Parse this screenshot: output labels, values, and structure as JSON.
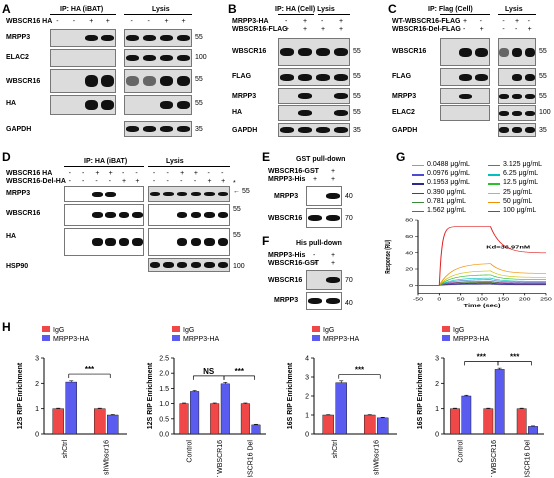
{
  "panels": {
    "A": {
      "label": "A",
      "ip_header": "IP: HA (iBAT)",
      "lysis_header": "Lysis",
      "condition_label": "WBSCR16 HA",
      "condition_signs": [
        "-",
        "-",
        "+",
        "+",
        "-",
        "-",
        "+",
        "+"
      ],
      "blots": [
        "MRPP3",
        "ELAC2",
        "WBSCR16",
        "HA",
        "GAPDH"
      ],
      "markers": [
        "55",
        "100",
        "55",
        "55",
        "35"
      ]
    },
    "B": {
      "label": "B",
      "ip_header": "IP: HA (Cell) Lysis",
      "conditions": [
        {
          "label": "MRPP3-HA",
          "signs": [
            "-",
            "+",
            "-",
            "+"
          ]
        },
        {
          "label": "WBSCR16-FLAG",
          "signs": [
            "+",
            "+",
            "+",
            "+"
          ]
        }
      ],
      "blots": [
        "WBSCR16",
        "FLAG",
        "MRPP3",
        "HA",
        "GAPDH"
      ],
      "markers": [
        "55",
        "55",
        "55",
        "55",
        "35"
      ]
    },
    "C": {
      "label": "C",
      "ip_header": "IP: Flag (Cell)",
      "lysis_header": "Lysis",
      "conditions": [
        {
          "label": "WT-WBSCR16-FLAG",
          "signs": [
            "-",
            "+",
            "-",
            "-",
            "+",
            "-"
          ]
        },
        {
          "label": "WBSCR16-Del-FLAG",
          "signs": [
            "-",
            "-",
            "+",
            "-",
            "-",
            "+"
          ]
        }
      ],
      "blots": [
        "WBSCR16",
        "FLAG",
        "MRPP3",
        "ELAC2",
        "GAPDH"
      ],
      "markers": [
        "55",
        "55",
        "55",
        "100",
        "35"
      ]
    },
    "D": {
      "label": "D",
      "ip_header": "IP: HA (iBAT)",
      "lysis_header": "Lysis",
      "conditions": [
        {
          "label": "WBSCR16 HA",
          "signs": [
            "-",
            "-",
            "+",
            "+",
            "-",
            "-",
            "-",
            "-",
            "+",
            "+",
            "-",
            "-"
          ]
        },
        {
          "label": "WBSCR16-Del-HA",
          "signs": [
            "-",
            "-",
            "-",
            "-",
            "+",
            "+",
            "-",
            "-",
            "-",
            "-",
            "+",
            "+"
          ]
        }
      ],
      "blots": [
        "MRPP3",
        "WBSCR16",
        "HA",
        "HSP90"
      ],
      "markers": [
        "55",
        "55",
        "55",
        "100"
      ],
      "arrows": [
        "*",
        "←"
      ]
    },
    "E": {
      "label": "E",
      "header": "GST pull-down",
      "conditions": [
        {
          "label": "WBSCR16-GST",
          "signs": [
            "-",
            "+"
          ]
        },
        {
          "label": "MRPP3-His",
          "signs": [
            "+",
            "+"
          ]
        }
      ],
      "blots": [
        "MRPP3",
        "WBSCR16"
      ],
      "markers": [
        "40",
        "70"
      ]
    },
    "F": {
      "label": "F",
      "header": "His pull-down",
      "conditions": [
        {
          "label": "MRPP3-His",
          "signs": [
            "-",
            "+"
          ]
        },
        {
          "label": "WBSCR16-GST",
          "signs": [
            "+",
            "+"
          ]
        }
      ],
      "blots": [
        "WBSCR16",
        "MRPP3"
      ],
      "markers": [
        "70",
        "40"
      ]
    }
  },
  "legend_colors": {
    "igg": "#f04848",
    "mrpp3": "#5a5cf0"
  },
  "chart_data": [
    {
      "panel": "G",
      "type": "line",
      "xlabel": "Time (sec)",
      "ylabel": "Response (RU)",
      "xlim": [
        -50,
        250
      ],
      "ylim": [
        -10,
        80
      ],
      "xticks": [
        "-50",
        "0",
        "50",
        "100",
        "150",
        "200",
        "250"
      ],
      "yticks": [
        "0",
        "20",
        "40",
        "60",
        "80"
      ],
      "annotation": "Kd=36.97nM",
      "association_end_sec": 120,
      "series": [
        {
          "name": "0.0488 μg/mL",
          "plateau": 1,
          "color": "#9a9aa0"
        },
        {
          "name": "0.0976 μg/mL",
          "plateau": 1.5,
          "color": "#4b4bd0"
        },
        {
          "name": "0.1953 μg/mL",
          "plateau": 2,
          "color": "#2a2a8a"
        },
        {
          "name": "0.390 μg/mL",
          "plateau": 3,
          "color": "#8a2a2a"
        },
        {
          "name": "0.781 μg/mL",
          "plateau": 4,
          "color": "#3a8a3a"
        },
        {
          "name": "1.562 μg/mL",
          "plateau": 5,
          "color": "#a03aa0"
        },
        {
          "name": "3.125 μg/mL",
          "plateau": 7,
          "color": "#3a7ac8"
        },
        {
          "name": "6.25 μg/mL",
          "plateau": 9,
          "color": "#00c0c0"
        },
        {
          "name": "12.5 μg/mL",
          "plateau": 13,
          "color": "#2ac02a"
        },
        {
          "name": "25 μg/mL",
          "plateau": 18,
          "color": "#d0c000"
        },
        {
          "name": "50 μg/mL",
          "plateau": 27,
          "color": "#f09000"
        },
        {
          "name": "100 μg/mL",
          "plateau": 72,
          "color": "#e02020"
        }
      ]
    },
    {
      "panel": "H1",
      "type": "bar",
      "ylabel": "12S RIP Enrichment",
      "ylim": [
        0,
        3
      ],
      "yticks": [
        "0",
        "1",
        "2",
        "3"
      ],
      "categories": [
        "shCtrl",
        "shWbscr16"
      ],
      "series": [
        {
          "name": "IgG",
          "values": [
            1.0,
            1.0
          ],
          "errors": [
            0.02,
            0.02
          ]
        },
        {
          "name": "MRPP3-HA",
          "values": [
            2.05,
            0.75
          ],
          "errors": [
            0.05,
            0.02
          ]
        }
      ],
      "annotations": [
        {
          "text": "***",
          "between": [
            "shCtrl",
            "shWbscr16"
          ]
        }
      ]
    },
    {
      "panel": "H2",
      "type": "bar",
      "ylabel": "12S RIP Enrichment",
      "ylim": [
        0,
        2.5
      ],
      "yticks": [
        "0.0",
        "0.5",
        "1.0",
        "1.5",
        "2.0",
        "2.5"
      ],
      "categories": [
        "Control",
        "WT WBSCR16",
        "WBSCR16 Del"
      ],
      "series": [
        {
          "name": "IgG",
          "values": [
            1.0,
            1.0,
            1.0
          ],
          "errors": [
            0.02,
            0.02,
            0.02
          ]
        },
        {
          "name": "MRPP3-HA",
          "values": [
            1.4,
            1.65,
            0.3
          ],
          "errors": [
            0.03,
            0.05,
            0.02
          ]
        }
      ],
      "annotations": [
        {
          "text": "NS",
          "between": [
            "Control",
            "WT WBSCR16"
          ]
        },
        {
          "text": "***",
          "between": [
            "WT WBSCR16",
            "WBSCR16 Del"
          ]
        }
      ]
    },
    {
      "panel": "H3",
      "type": "bar",
      "ylabel": "16S RIP Enrichment",
      "ylim": [
        0,
        4
      ],
      "yticks": [
        "0",
        "1",
        "2",
        "3",
        "4"
      ],
      "categories": [
        "shCtrl",
        "shWbscr16"
      ],
      "series": [
        {
          "name": "IgG",
          "values": [
            1.0,
            1.0
          ],
          "errors": [
            0.02,
            0.02
          ]
        },
        {
          "name": "MRPP3-HA",
          "values": [
            2.7,
            0.85
          ],
          "errors": [
            0.1,
            0.03
          ]
        }
      ],
      "annotations": [
        {
          "text": "***",
          "between": [
            "shCtrl",
            "shWbscr16"
          ]
        }
      ]
    },
    {
      "panel": "H4",
      "type": "bar",
      "ylabel": "16S RIP Enrichment",
      "ylim": [
        0,
        3
      ],
      "yticks": [
        "0",
        "1",
        "2",
        "3"
      ],
      "categories": [
        "Control",
        "WT WBSCR16",
        "WBSCR16 Del"
      ],
      "series": [
        {
          "name": "IgG",
          "values": [
            1.0,
            1.0,
            1.0
          ],
          "errors": [
            0.02,
            0.02,
            0.02
          ]
        },
        {
          "name": "MRPP3-HA",
          "values": [
            1.5,
            2.55,
            0.3
          ],
          "errors": [
            0.03,
            0.05,
            0.02
          ]
        }
      ],
      "annotations": [
        {
          "text": "***",
          "between": [
            "Control",
            "WT WBSCR16"
          ]
        },
        {
          "text": "***",
          "between": [
            "WT WBSCR16",
            "WBSCR16 Del"
          ]
        }
      ]
    }
  ],
  "panel_labels": {
    "G": "G",
    "H": "H"
  }
}
